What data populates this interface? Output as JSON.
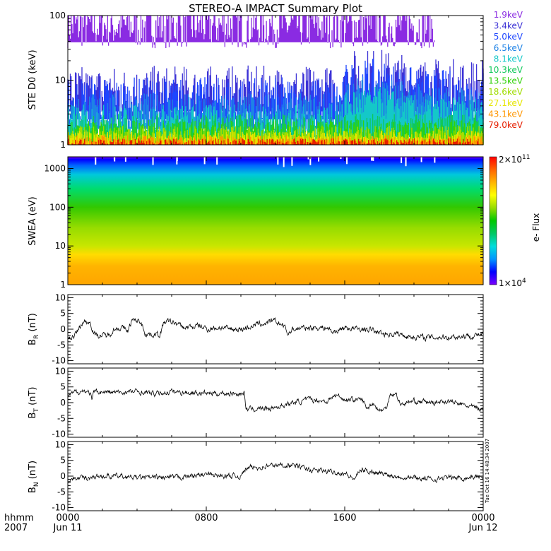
{
  "chart_data": [
    {
      "type": "line",
      "title": "STEREO-A IMPACT Summary Plot",
      "ylabel": "STE D0 (keV)",
      "yscale": "log",
      "ylim": [
        1,
        100
      ],
      "yticks": [
        {
          "v": 1,
          "label": "1"
        },
        {
          "v": 10,
          "label": "10"
        },
        {
          "v": 100,
          "label": "100"
        }
      ],
      "legend_placement": "right",
      "series": [
        {
          "name": "1.9keV",
          "color": "#8a2be2",
          "level": 70,
          "spread": 0.35,
          "end_hour": 21.2
        },
        {
          "name": "3.4keV",
          "color": "#3c32d6",
          "level": 6,
          "spread": 0.45,
          "end_hour": 24
        },
        {
          "name": "5.0keV",
          "color": "#1e46ff",
          "level": 4.5,
          "spread": 0.4,
          "end_hour": 24
        },
        {
          "name": "6.5keV",
          "color": "#1e82e6",
          "level": 3.2,
          "spread": 0.3,
          "end_hour": 24
        },
        {
          "name": "8.1keV",
          "color": "#14c8c8",
          "level": 2.4,
          "spread": 0.25,
          "end_hour": 24
        },
        {
          "name": "10.3keV",
          "color": "#10c85a",
          "level": 1.9,
          "spread": 0.2,
          "end_hour": 24
        },
        {
          "name": "13.5keV",
          "color": "#32d20a",
          "level": 1.6,
          "spread": 0.18,
          "end_hour": 24
        },
        {
          "name": "18.6keV",
          "color": "#a0dc00",
          "level": 1.4,
          "spread": 0.15,
          "end_hour": 24
        },
        {
          "name": "27.1keV",
          "color": "#e6e600",
          "level": 1.25,
          "spread": 0.12,
          "end_hour": 24
        },
        {
          "name": "43.1keV",
          "color": "#ff9600",
          "level": 1.12,
          "spread": 0.1,
          "end_hour": 24
        },
        {
          "name": "79.0keV",
          "color": "#e61e00",
          "level": 1.05,
          "spread": 0.08,
          "end_hour": 24
        }
      ]
    },
    {
      "type": "heatmap",
      "ylabel": "SWEA (eV)",
      "yscale": "log",
      "ylim": [
        1,
        2000
      ],
      "yticks": [
        {
          "v": 1,
          "label": "1"
        },
        {
          "v": 10,
          "label": "10"
        },
        {
          "v": 100,
          "label": "100"
        },
        {
          "v": 1000,
          "label": "1000"
        }
      ],
      "colorbar": {
        "label": "e- Flux",
        "max_label": "2×10",
        "max_exp": "11",
        "min_label": "1×10",
        "min_exp": "4",
        "colors": [
          "#7a00ff",
          "#0000ff",
          "#0096ff",
          "#00dcdc",
          "#00c864",
          "#00c800",
          "#96dc00",
          "#ffff00",
          "#ffb400",
          "#ff6400",
          "#ff0000"
        ]
      },
      "energy_profile": [
        {
          "ev": 1,
          "color": "#ffa500"
        },
        {
          "ev": 3,
          "color": "#ffb400"
        },
        {
          "ev": 6,
          "color": "#ffdc00"
        },
        {
          "ev": 10,
          "color": "#c8e600"
        },
        {
          "ev": 30,
          "color": "#96dc00"
        },
        {
          "ev": 100,
          "color": "#32c800"
        },
        {
          "ev": 300,
          "color": "#00dc6e"
        },
        {
          "ev": 700,
          "color": "#00c8dc"
        },
        {
          "ev": 1200,
          "color": "#0064ff"
        },
        {
          "ev": 1700,
          "color": "#0000ff"
        },
        {
          "ev": 2000,
          "color": "#7a00ff"
        }
      ]
    },
    {
      "type": "line",
      "ylabel": "B",
      "ylabel_sub": "R",
      "ylabel_unit": " (nT)",
      "ylim": [
        -11,
        11
      ],
      "yticks": [
        {
          "v": -10,
          "label": "-10"
        },
        {
          "v": -5,
          "label": "-5"
        },
        {
          "v": 0,
          "label": "0"
        },
        {
          "v": 5,
          "label": "5"
        },
        {
          "v": 10,
          "label": "10"
        }
      ],
      "profile": [
        [
          0,
          -3
        ],
        [
          0.4,
          -2
        ],
        [
          0.9,
          2.5
        ],
        [
          1.3,
          2
        ],
        [
          1.6,
          -2
        ],
        [
          2.4,
          -2
        ],
        [
          2.6,
          0
        ],
        [
          3.1,
          0.5
        ],
        [
          3.5,
          -0.5
        ],
        [
          3.7,
          2.8
        ],
        [
          4.2,
          2.5
        ],
        [
          4.5,
          -1.5
        ],
        [
          5.3,
          -1.8
        ],
        [
          5.6,
          2.5
        ],
        [
          6.2,
          2
        ],
        [
          6.7,
          0.5
        ],
        [
          7.6,
          1
        ],
        [
          8.1,
          0
        ],
        [
          8.6,
          0.5
        ],
        [
          9,
          0.5
        ],
        [
          9.3,
          0
        ],
        [
          10,
          0
        ],
        [
          11,
          1.5
        ],
        [
          12,
          2.5
        ],
        [
          12.5,
          1
        ],
        [
          12.7,
          -1.5
        ],
        [
          13,
          0
        ],
        [
          14,
          0.5
        ],
        [
          15,
          0.5
        ],
        [
          15.3,
          -1
        ],
        [
          16,
          0.5
        ],
        [
          16.8,
          0
        ],
        [
          17.5,
          -0.2
        ],
        [
          18.2,
          -1.5
        ],
        [
          19,
          -1.5
        ],
        [
          20,
          -2.5
        ],
        [
          21,
          -2.6
        ],
        [
          22,
          -2.4
        ],
        [
          23,
          -2.2
        ],
        [
          24,
          -1.8
        ]
      ],
      "noise": 0.9
    },
    {
      "type": "line",
      "ylabel": "B",
      "ylabel_sub": "T",
      "ylabel_unit": " (nT)",
      "ylim": [
        -11,
        11
      ],
      "yticks": [
        {
          "v": -10,
          "label": "-10"
        },
        {
          "v": -5,
          "label": "-5"
        },
        {
          "v": 0,
          "label": "0"
        },
        {
          "v": 5,
          "label": "5"
        },
        {
          "v": 10,
          "label": "10"
        }
      ],
      "profile": [
        [
          0,
          2
        ],
        [
          0.5,
          3.5
        ],
        [
          1,
          3.8
        ],
        [
          1.3,
          3
        ],
        [
          1.4,
          0
        ],
        [
          1.5,
          3.5
        ],
        [
          3,
          3.2
        ],
        [
          4,
          3.5
        ],
        [
          5,
          2.8
        ],
        [
          6,
          3.5
        ],
        [
          7,
          3.2
        ],
        [
          8,
          3
        ],
        [
          9,
          3
        ],
        [
          10,
          2.8
        ],
        [
          10.2,
          3
        ],
        [
          10.3,
          -2
        ],
        [
          11,
          -2
        ],
        [
          12,
          -1.5
        ],
        [
          13,
          0
        ],
        [
          14,
          1
        ],
        [
          15,
          0.5
        ],
        [
          15.5,
          2.5
        ],
        [
          16,
          1
        ],
        [
          17,
          1
        ],
        [
          17.3,
          -2
        ],
        [
          17.6,
          0
        ],
        [
          18,
          -2.5
        ],
        [
          18.4,
          -2
        ],
        [
          18.6,
          2.8
        ],
        [
          19,
          2.5
        ],
        [
          19.2,
          -0.5
        ],
        [
          20,
          0.5
        ],
        [
          21,
          0
        ],
        [
          22,
          0.5
        ],
        [
          23,
          -1
        ],
        [
          24,
          -2
        ]
      ],
      "noise": 0.8
    },
    {
      "type": "line",
      "ylabel": "B",
      "ylabel_sub": "N",
      "ylabel_unit": " (nT)",
      "ylim": [
        -11,
        11
      ],
      "yticks": [
        {
          "v": -10,
          "label": "-10"
        },
        {
          "v": -5,
          "label": "-5"
        },
        {
          "v": 0,
          "label": "0"
        },
        {
          "v": 5,
          "label": "5"
        },
        {
          "v": 10,
          "label": "10"
        }
      ],
      "profile": [
        [
          0,
          -1
        ],
        [
          1,
          -0.5
        ],
        [
          2,
          0
        ],
        [
          3,
          0
        ],
        [
          4,
          -0.5
        ],
        [
          5,
          -0.5
        ],
        [
          6,
          -0.5
        ],
        [
          7,
          0
        ],
        [
          8,
          0.5
        ],
        [
          9,
          0
        ],
        [
          10,
          0
        ],
        [
          10.3,
          2.5
        ],
        [
          11,
          2.8
        ],
        [
          12,
          3.5
        ],
        [
          13,
          3.5
        ],
        [
          14,
          2
        ],
        [
          15,
          1.5
        ],
        [
          16,
          1
        ],
        [
          16.5,
          -1
        ],
        [
          17,
          2
        ],
        [
          18,
          1
        ],
        [
          19,
          0
        ],
        [
          20,
          -0.5
        ],
        [
          21,
          -1
        ],
        [
          22,
          -0.5
        ],
        [
          23,
          -0.5
        ],
        [
          24,
          0
        ]
      ],
      "noise": 0.8
    }
  ],
  "x_axis": {
    "xlim": [
      0,
      24
    ],
    "ticks": [
      {
        "v": 0,
        "label": "0000",
        "date": "Jun 11"
      },
      {
        "v": 8,
        "label": "0800",
        "date": ""
      },
      {
        "v": 16,
        "label": "1600",
        "date": ""
      },
      {
        "v": 24,
        "label": "0000",
        "date": "Jun 12"
      }
    ],
    "format_label": "hhmm",
    "year_label": "2007"
  },
  "timestamp": "Tue Oct 16 14:48:34 2007"
}
